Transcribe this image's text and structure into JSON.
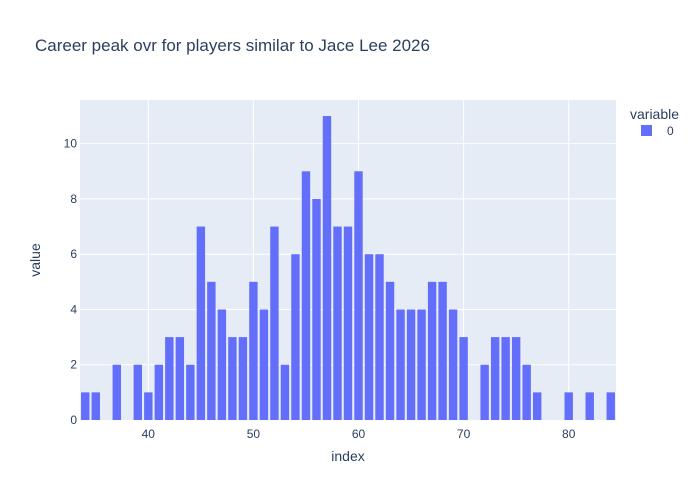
{
  "chart_data": {
    "type": "bar",
    "title": "Career peak ovr for players similar to Jace Lee 2026",
    "xlabel": "index",
    "ylabel": "value",
    "x_ticks": [
      40,
      50,
      60,
      70,
      80
    ],
    "y_ticks": [
      0,
      2,
      4,
      6,
      8,
      10
    ],
    "xlim": [
      33.5,
      84.5
    ],
    "ylim": [
      0,
      11.58
    ],
    "grid": true,
    "legend": {
      "title": "variable",
      "placement": "top-right"
    },
    "colors": {
      "bar": "#636efa",
      "plot_bg": "#e5ecf6",
      "grid": "#ffffff",
      "text": "#2a3f5f"
    },
    "series": [
      {
        "name": "0",
        "x": [
          34,
          35,
          37,
          39,
          40,
          41,
          42,
          43,
          44,
          45,
          46,
          47,
          48,
          49,
          50,
          51,
          52,
          53,
          54,
          55,
          56,
          57,
          58,
          59,
          60,
          61,
          62,
          63,
          64,
          65,
          66,
          67,
          68,
          69,
          70,
          72,
          73,
          74,
          75,
          76,
          77,
          80,
          82,
          84
        ],
        "values": [
          1,
          1,
          2,
          2,
          1,
          2,
          3,
          3,
          2,
          7,
          5,
          4,
          3,
          3,
          5,
          4,
          7,
          2,
          6,
          9,
          8,
          11,
          7,
          7,
          9,
          6,
          6,
          5,
          4,
          4,
          4,
          5,
          5,
          4,
          3,
          2,
          3,
          3,
          3,
          2,
          1,
          1,
          1,
          1
        ]
      }
    ]
  }
}
